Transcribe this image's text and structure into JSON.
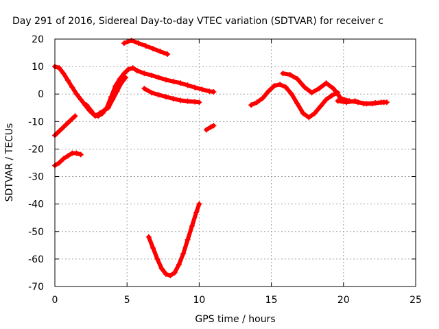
{
  "chart_data": {
    "type": "scatter",
    "title": "Day 291 of 2016, Sidereal Day-to-day VTEC variation (SDTVAR) for receiver c",
    "xlabel": "GPS time / hours",
    "ylabel": "SDTVAR / TECUs",
    "xlim": [
      0,
      25
    ],
    "ylim": [
      -70,
      20
    ],
    "xticks": [
      0,
      5,
      10,
      15,
      20,
      25
    ],
    "yticks": [
      -70,
      -60,
      -50,
      -40,
      -30,
      -20,
      -10,
      0,
      10,
      20
    ],
    "grid": true,
    "marker": "plus",
    "color": "#ff0000",
    "series": [
      {
        "x": [
          0.0,
          0.3,
          0.6,
          0.9,
          1.2,
          1.5,
          1.8,
          2.1,
          2.4,
          2.7,
          3.0,
          3.3,
          3.6,
          3.9,
          4.2,
          4.5,
          4.8,
          5.1,
          5.4,
          5.7
        ],
        "y": [
          10,
          9.5,
          7.5,
          5,
          2.5,
          0,
          -2,
          -4,
          -6,
          -7.5,
          -8,
          -7,
          -5,
          -1,
          3,
          5.5,
          7.5,
          9,
          9.5,
          8.5
        ]
      },
      {
        "x": [
          2.2,
          2.5,
          2.8,
          3.1,
          3.4,
          3.7,
          4.0,
          4.3,
          4.6,
          4.9
        ],
        "y": [
          -4,
          -6,
          -8,
          -7,
          -6,
          -5,
          -2,
          1,
          4,
          6
        ]
      },
      {
        "x": [
          5.7,
          6.2,
          6.7,
          7.2,
          7.7,
          8.2,
          8.7,
          9.2,
          9.7,
          10.2,
          10.7,
          11.0
        ],
        "y": [
          8.5,
          7.5,
          6.8,
          6,
          5.2,
          4.6,
          4,
          3.2,
          2.4,
          1.7,
          1.0,
          0.8
        ]
      },
      {
        "x": [
          6.2,
          6.7,
          7.2,
          7.7,
          8.2,
          8.7,
          9.2,
          9.7,
          10.0
        ],
        "y": [
          2,
          0.5,
          -0.3,
          -1,
          -1.7,
          -2.3,
          -2.6,
          -2.8,
          -3
        ]
      },
      {
        "x": [
          4.8,
          5.3,
          5.8,
          6.3,
          6.8,
          7.3,
          7.8
        ],
        "y": [
          18.5,
          19.5,
          18.5,
          17.5,
          16.5,
          15.5,
          14.5
        ]
      },
      {
        "x": [
          0.0,
          0.3,
          0.6,
          0.9,
          1.2,
          1.4
        ],
        "y": [
          -15,
          -13.5,
          -12,
          -10.5,
          -9,
          -8
        ]
      },
      {
        "x": [
          0.0,
          0.3,
          0.6,
          0.9,
          1.2,
          1.5,
          1.8
        ],
        "y": [
          -26,
          -25,
          -23.5,
          -22.5,
          -21.5,
          -21.5,
          -22
        ]
      },
      {
        "x": [
          6.5,
          6.8,
          7.1,
          7.4,
          7.7,
          8.0,
          8.3,
          8.6,
          8.9,
          9.2,
          9.5,
          9.8,
          10.0
        ],
        "y": [
          -52,
          -56,
          -60,
          -63.5,
          -65.5,
          -66,
          -65,
          -62,
          -58,
          -53,
          -48,
          -43,
          -40
        ]
      },
      {
        "x": [
          10.5,
          10.8,
          11.0
        ],
        "y": [
          -13,
          -12,
          -11.5
        ]
      },
      {
        "x": [
          13.6,
          14.0,
          14.4,
          14.8,
          15.2,
          15.6,
          16.0,
          16.4,
          16.8,
          17.2,
          17.6,
          18.0,
          18.4,
          18.8,
          19.2,
          19.6
        ],
        "y": [
          -4,
          -3,
          -1.5,
          1,
          3,
          3.5,
          2.5,
          0,
          -3.5,
          -7,
          -8.5,
          -7,
          -4.5,
          -2,
          -0.5,
          0.5
        ]
      },
      {
        "x": [
          15.8,
          16.3,
          16.8,
          17.3,
          17.8,
          18.3,
          18.8,
          19.3,
          19.8,
          20.4,
          21.0,
          21.6,
          22.2,
          22.8
        ],
        "y": [
          7.5,
          7,
          5.5,
          2.5,
          0.5,
          2,
          4,
          2,
          -1.5,
          -2.5,
          -3,
          -3.5,
          -3.2,
          -3
        ]
      },
      {
        "x": [
          19.6,
          20.2,
          20.8,
          21.4,
          22.0,
          22.6,
          23.0
        ],
        "y": [
          -2.5,
          -3,
          -2.5,
          -3.5,
          -3.5,
          -3,
          -3
        ]
      }
    ]
  }
}
